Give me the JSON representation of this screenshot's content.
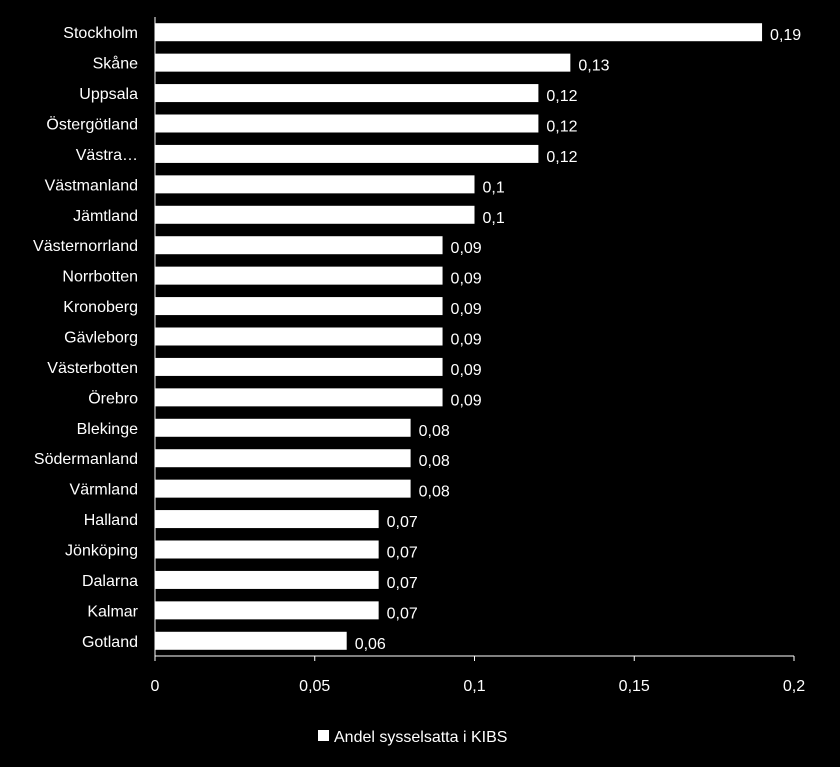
{
  "chart_data": {
    "type": "bar",
    "orientation": "horizontal",
    "categories": [
      "Stockholm",
      "Skåne",
      "Uppsala",
      "Östergötland",
      "Västra…",
      "Västmanland",
      "Jämtland",
      "Västernorrland",
      "Norrbotten",
      "Kronoberg",
      "Gävleborg",
      "Västerbotten",
      "Örebro",
      "Blekinge",
      "Södermanland",
      "Värmland",
      "Halland",
      "Jönköping",
      "Dalarna",
      "Kalmar",
      "Gotland"
    ],
    "series": [
      {
        "name": "Andel sysselsatta i KIBS",
        "values": [
          0.19,
          0.13,
          0.12,
          0.12,
          0.12,
          0.1,
          0.1,
          0.09,
          0.09,
          0.09,
          0.09,
          0.09,
          0.09,
          0.08,
          0.08,
          0.08,
          0.07,
          0.07,
          0.07,
          0.07,
          0.06
        ],
        "labels": [
          "0,19",
          "0,13",
          "0,12",
          "0,12",
          "0,12",
          "0,1",
          "0,1",
          "0,09",
          "0,09",
          "0,09",
          "0,09",
          "0,09",
          "0,09",
          "0,08",
          "0,08",
          "0,08",
          "0,07",
          "0,07",
          "0,07",
          "0,07",
          "0,06"
        ],
        "color": "#ffffff"
      }
    ],
    "xlim": [
      0,
      0.2
    ],
    "xticks": [
      0,
      0.05,
      0.1,
      0.15,
      0.2
    ],
    "xtick_labels": [
      "0",
      "0,05",
      "0,1",
      "0,15",
      "0,2"
    ],
    "grid": false,
    "legend": "bottom",
    "background": "#000000",
    "text_color": "#ffffff"
  }
}
